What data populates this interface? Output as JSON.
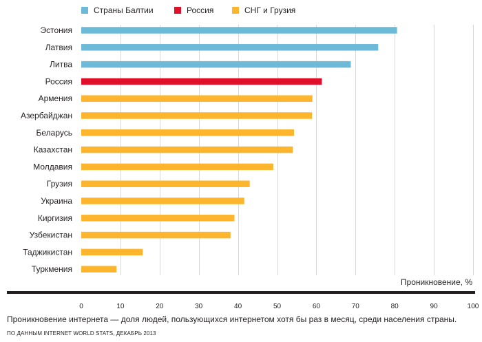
{
  "chart_data": {
    "type": "bar",
    "orientation": "horizontal",
    "categories": [
      "Эстония",
      "Латвия",
      "Литва",
      "Россия",
      "Армения",
      "Азербайджан",
      "Беларусь",
      "Казахстан",
      "Молдавия",
      "Грузия",
      "Украина",
      "Киргизия",
      "Узбекистан",
      "Таджикистан",
      "Туркмения"
    ],
    "values": [
      80.6,
      75.8,
      68.8,
      61.4,
      59.0,
      58.9,
      54.3,
      54.0,
      49.0,
      43.0,
      41.6,
      39.1,
      38.1,
      15.7,
      9.0
    ],
    "groups": [
      "baltic",
      "baltic",
      "baltic",
      "russia",
      "cis",
      "cis",
      "cis",
      "cis",
      "cis",
      "cis",
      "cis",
      "cis",
      "cis",
      "cis",
      "cis"
    ],
    "legend": [
      {
        "key": "baltic",
        "label": "Страны Балтии",
        "color": "#6cbad8"
      },
      {
        "key": "russia",
        "label": "Россия",
        "color": "#e0102a"
      },
      {
        "key": "cis",
        "label": "СНГ и Грузия",
        "color": "#fcb52c"
      }
    ],
    "legend_position": "top-left",
    "xlabel": "Проникновение, %",
    "xlim": [
      0,
      100
    ],
    "xticks": [
      "0",
      "10",
      "20",
      "30",
      "40",
      "50",
      "60",
      "70",
      "80",
      "90",
      "100"
    ],
    "grid": true
  },
  "caption": "Проникновение интернета — доля людей, пользующихся интернетом хотя бы раз в месяц, среди населения страны.",
  "source": "ПО ДАННЫМ INTERNET WORLD STATS, ДЕКАБРЬ 2013"
}
